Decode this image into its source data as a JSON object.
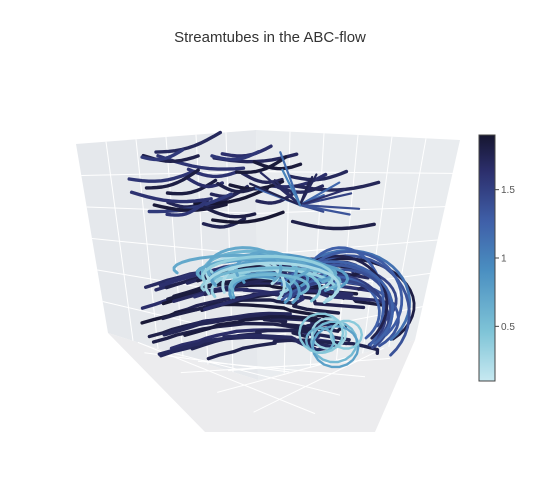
{
  "chart_data": {
    "type": "streamtube",
    "title": "Streamtubes in the ABC-flow",
    "colorbar": {
      "colorscale": [
        "#c7e9f1",
        "#7fc4d7",
        "#4a8fc1",
        "#3f5fa8",
        "#2c2f6d",
        "#161630"
      ],
      "cmin": 0.1,
      "cmax": 1.9,
      "ticks": [
        0.5,
        1,
        1.5
      ],
      "tick_labels": [
        "0.5",
        "1",
        "1.5"
      ]
    },
    "grid": true
  }
}
